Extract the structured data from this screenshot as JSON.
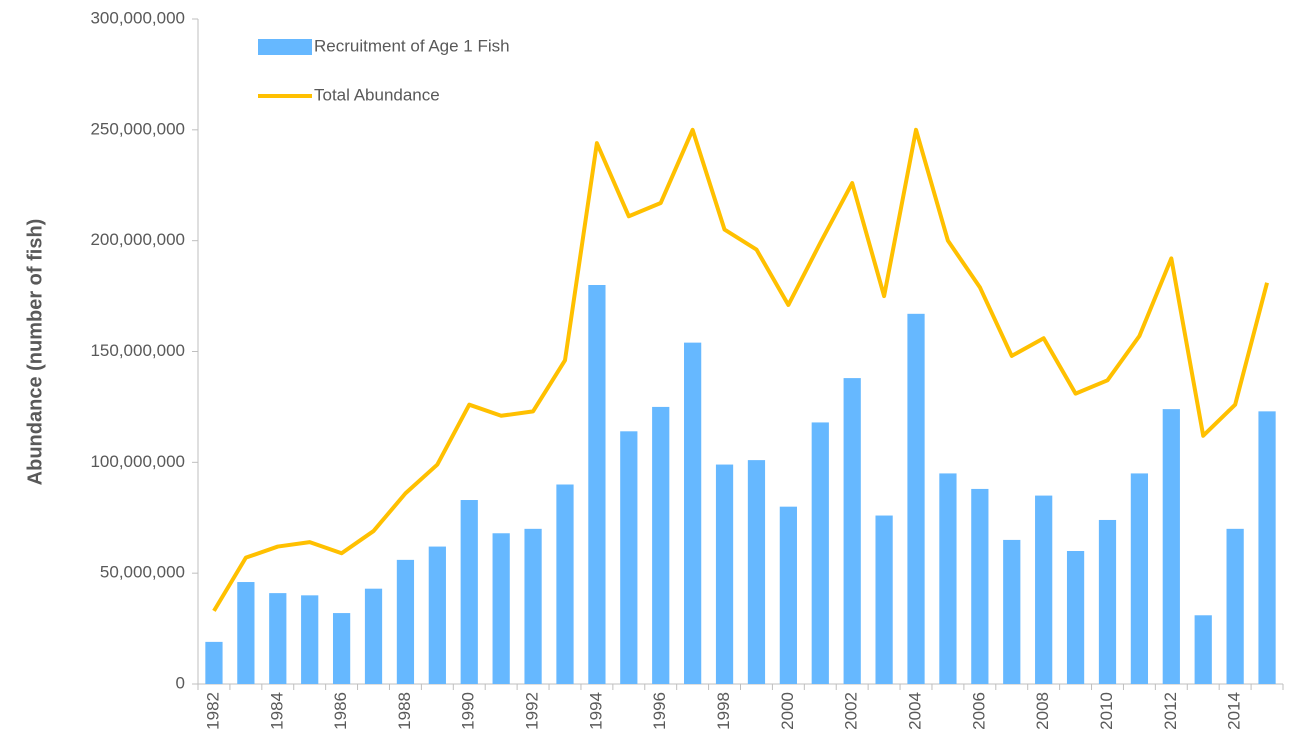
{
  "chart_data": {
    "type": "bar_line",
    "y_label": "Abundance (number of fish)",
    "categories": [
      "1982",
      null,
      "1984",
      null,
      "1986",
      null,
      "1988",
      null,
      "1990",
      null,
      "1992",
      null,
      "1994",
      null,
      "1996",
      null,
      "1998",
      null,
      "2000",
      null,
      "2002",
      null,
      "2004",
      null,
      "2006",
      null,
      "2008",
      null,
      "2010",
      null,
      "2012",
      null,
      "2014",
      null
    ],
    "series": [
      {
        "name": "Recruitment of Age 1 Fish",
        "type": "bar",
        "color": "#66b8ff",
        "values": [
          19000000,
          46000000,
          41000000,
          40000000,
          32000000,
          43000000,
          56000000,
          62000000,
          83000000,
          68000000,
          70000000,
          90000000,
          180000000,
          114000000,
          125000000,
          154000000,
          99000000,
          101000000,
          80000000,
          118000000,
          138000000,
          76000000,
          167000000,
          95000000,
          88000000,
          65000000,
          85000000,
          60000000,
          74000000,
          95000000,
          124000000,
          31000000,
          70000000,
          123000000
        ]
      },
      {
        "name": "Total Abundance",
        "type": "line",
        "color": "#ffc000",
        "values": [
          33000000,
          57000000,
          62000000,
          64000000,
          59000000,
          69000000,
          86000000,
          99000000,
          126000000,
          121000000,
          123000000,
          146000000,
          244000000,
          211000000,
          217000000,
          250000000,
          205000000,
          196000000,
          171000000,
          199000000,
          226000000,
          175000000,
          250000000,
          200000000,
          179000000,
          148000000,
          156000000,
          131000000,
          137000000,
          157000000,
          192000000,
          112000000,
          126000000,
          181000000
        ]
      }
    ],
    "ylim": [
      0,
      300000000
    ],
    "yticks": [
      0,
      {
        "value": 50000000,
        "label": "50,000,000"
      },
      {
        "value": 100000000,
        "label": "100,000,000"
      },
      {
        "value": 150000000,
        "label": "150,000,000"
      },
      {
        "value": 200000000,
        "label": "200,000,000"
      },
      {
        "value": 250000000,
        "label": "250,000,000"
      },
      {
        "value": 300000000,
        "label": "300,000,000"
      }
    ],
    "legend": "upper left"
  }
}
